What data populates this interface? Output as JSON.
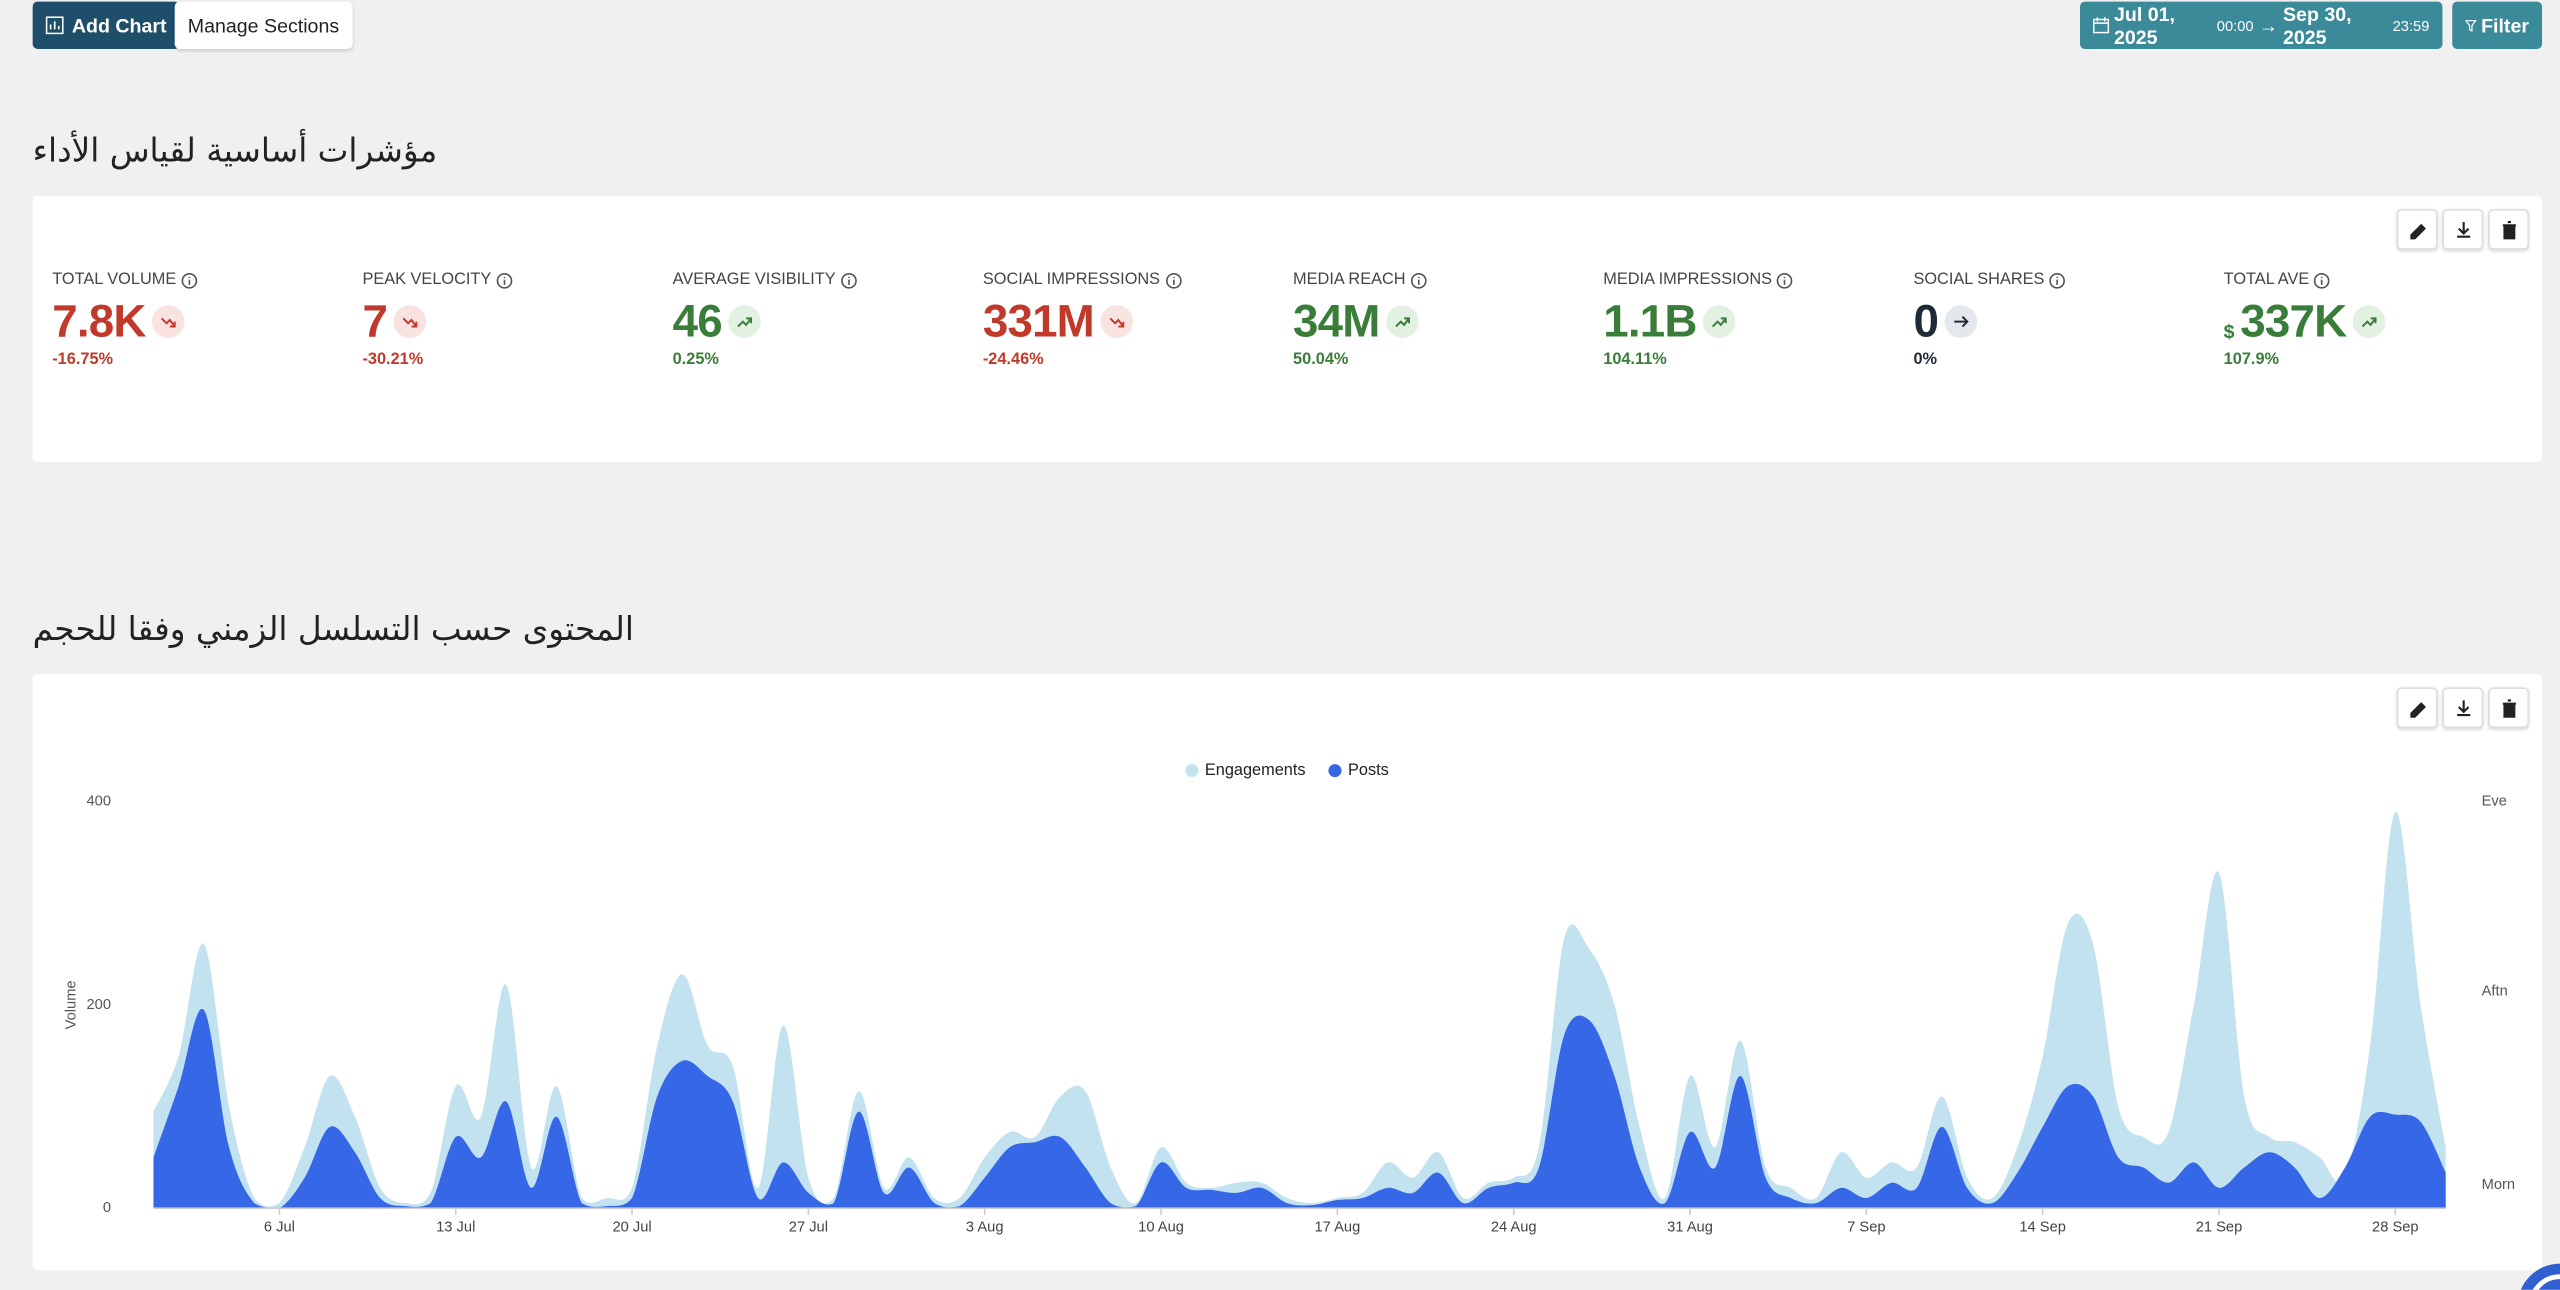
{
  "toolbar": {
    "add_chart": "Add Chart",
    "manage_sections": "Manage Sections",
    "date_from": "Jul 01, 2025",
    "time_from": "00:00",
    "arrow": "→",
    "date_to": "Sep 30, 2025",
    "time_to": "23:59",
    "filter": "Filter"
  },
  "kpi_section": {
    "title": "مؤشرات أساسية لقياس الأداء",
    "items": [
      {
        "label": "TOTAL VOLUME",
        "value": "7.8K",
        "change": "-16.75%",
        "trend": "down"
      },
      {
        "label": "PEAK VELOCITY",
        "value": "7",
        "change": "-30.21%",
        "trend": "down"
      },
      {
        "label": "AVERAGE VISIBILITY",
        "value": "46",
        "change": "0.25%",
        "trend": "up"
      },
      {
        "label": "SOCIAL IMPRESSIONS",
        "value": "331M",
        "change": "-24.46%",
        "trend": "down"
      },
      {
        "label": "MEDIA REACH",
        "value": "34M",
        "change": "50.04%",
        "trend": "up"
      },
      {
        "label": "MEDIA IMPRESSIONS",
        "value": "1.1B",
        "change": "104.11%",
        "trend": "up"
      },
      {
        "label": "SOCIAL SHARES",
        "value": "0",
        "change": "0%",
        "trend": "flat"
      },
      {
        "label": "TOTAL AVE",
        "currency": "$",
        "value": "337K",
        "change": "107.9%",
        "trend": "up"
      }
    ]
  },
  "chart_section": {
    "title": "المحتوى حسب التسلسل الزمني وفقا للحجم"
  },
  "chart_data": {
    "type": "area",
    "ylabel": "Volume",
    "ylim": [
      0,
      400
    ],
    "yticks": [
      0,
      200,
      400
    ],
    "y2_labels": [
      "Eve",
      "Aftn",
      "Morn"
    ],
    "legend": "top",
    "categories": [
      null,
      null,
      null,
      null,
      null,
      "6 Jul",
      null,
      null,
      null,
      null,
      null,
      null,
      "13 Jul",
      null,
      null,
      null,
      null,
      null,
      null,
      "20 Jul",
      null,
      null,
      null,
      null,
      null,
      null,
      "27 Jul",
      null,
      null,
      null,
      null,
      null,
      null,
      "3 Aug",
      null,
      null,
      null,
      null,
      null,
      null,
      "10 Aug",
      null,
      null,
      null,
      null,
      null,
      null,
      "17 Aug",
      null,
      null,
      null,
      null,
      null,
      null,
      "24 Aug",
      null,
      null,
      null,
      null,
      null,
      null,
      "31 Aug",
      null,
      null,
      null,
      null,
      null,
      null,
      "7 Sep",
      null,
      null,
      null,
      null,
      null,
      null,
      "14 Sep",
      null,
      null,
      null,
      null,
      null,
      null,
      "21 Sep",
      null,
      null,
      null,
      null,
      null,
      null,
      "28 Sep",
      null,
      null
    ],
    "series": [
      {
        "name": "Engagements",
        "color": "#c3e2ef",
        "values": [
          95,
          150,
          260,
          100,
          10,
          5,
          60,
          130,
          90,
          20,
          5,
          15,
          120,
          90,
          220,
          40,
          120,
          10,
          10,
          20,
          160,
          230,
          160,
          140,
          20,
          180,
          30,
          10,
          115,
          20,
          50,
          10,
          10,
          50,
          75,
          70,
          110,
          115,
          40,
          5,
          60,
          25,
          20,
          25,
          25,
          10,
          5,
          10,
          15,
          45,
          30,
          55,
          10,
          25,
          30,
          60,
          265,
          255,
          200,
          80,
          10,
          130,
          60,
          165,
          40,
          20,
          10,
          55,
          30,
          45,
          40,
          110,
          30,
          10,
          60,
          150,
          280,
          260,
          100,
          70,
          75,
          200,
          330,
          110,
          70,
          65,
          50,
          30,
          160,
          390,
          200,
          60
        ]
      },
      {
        "name": "Posts",
        "color": "#3667e6",
        "values": [
          50,
          120,
          195,
          60,
          5,
          0,
          30,
          80,
          55,
          10,
          2,
          5,
          70,
          50,
          105,
          20,
          90,
          5,
          2,
          10,
          110,
          145,
          130,
          105,
          10,
          45,
          15,
          5,
          95,
          15,
          40,
          5,
          2,
          30,
          60,
          65,
          70,
          40,
          5,
          2,
          45,
          20,
          18,
          15,
          20,
          5,
          3,
          8,
          10,
          20,
          15,
          35,
          5,
          20,
          25,
          40,
          170,
          185,
          130,
          40,
          5,
          75,
          40,
          130,
          30,
          10,
          5,
          20,
          10,
          25,
          20,
          80,
          20,
          5,
          35,
          80,
          120,
          110,
          50,
          40,
          25,
          45,
          20,
          40,
          55,
          40,
          10,
          40,
          90,
          92,
          85,
          35
        ]
      }
    ]
  }
}
